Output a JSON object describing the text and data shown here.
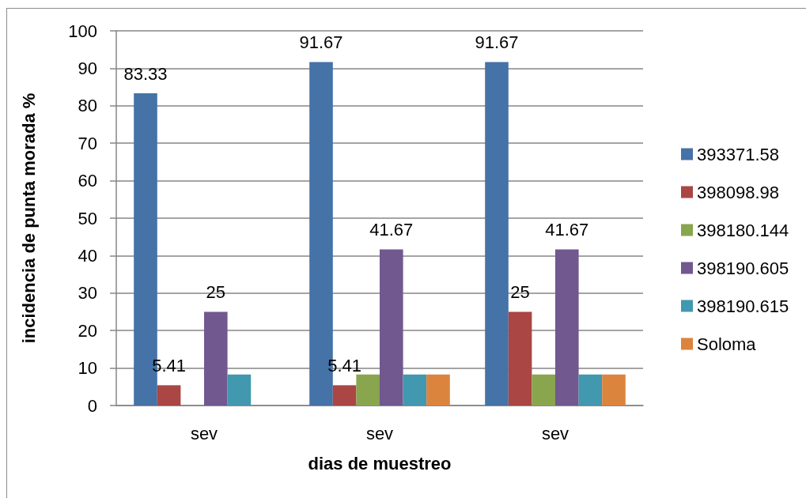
{
  "chart_data": {
    "type": "bar",
    "xlabel": "dias de muestreo",
    "ylabel": "incidencia de punta morada %",
    "categories": [
      "sev",
      "sev",
      "sev"
    ],
    "series": [
      {
        "name": "393371.58",
        "color": "#4572a7",
        "values": [
          83.33,
          91.67,
          91.67
        ],
        "value_labels": [
          "83.33",
          "91.67",
          "91.67"
        ]
      },
      {
        "name": "398098.98",
        "color": "#aa4643",
        "values": [
          5.41,
          5.41,
          25
        ],
        "value_labels": [
          "5.41",
          "5.41",
          "25"
        ]
      },
      {
        "name": "398180.144",
        "color": "#89a54e",
        "values": [
          null,
          8.3,
          8.3
        ]
      },
      {
        "name": "398190.605",
        "color": "#71588f",
        "values": [
          25,
          41.67,
          41.67
        ],
        "value_labels": [
          "25",
          "41.67",
          "41.67"
        ]
      },
      {
        "name": "398190.615",
        "color": "#4198af",
        "values": [
          8.3,
          8.3,
          8.3
        ]
      },
      {
        "name": "Soloma",
        "color": "#db843d",
        "values": [
          null,
          8.3,
          8.3
        ]
      }
    ],
    "ylim": [
      0,
      100
    ],
    "yticks": [
      0,
      10,
      20,
      30,
      40,
      50,
      60,
      70,
      80,
      90,
      100
    ],
    "grid": "y",
    "legend": "right"
  }
}
